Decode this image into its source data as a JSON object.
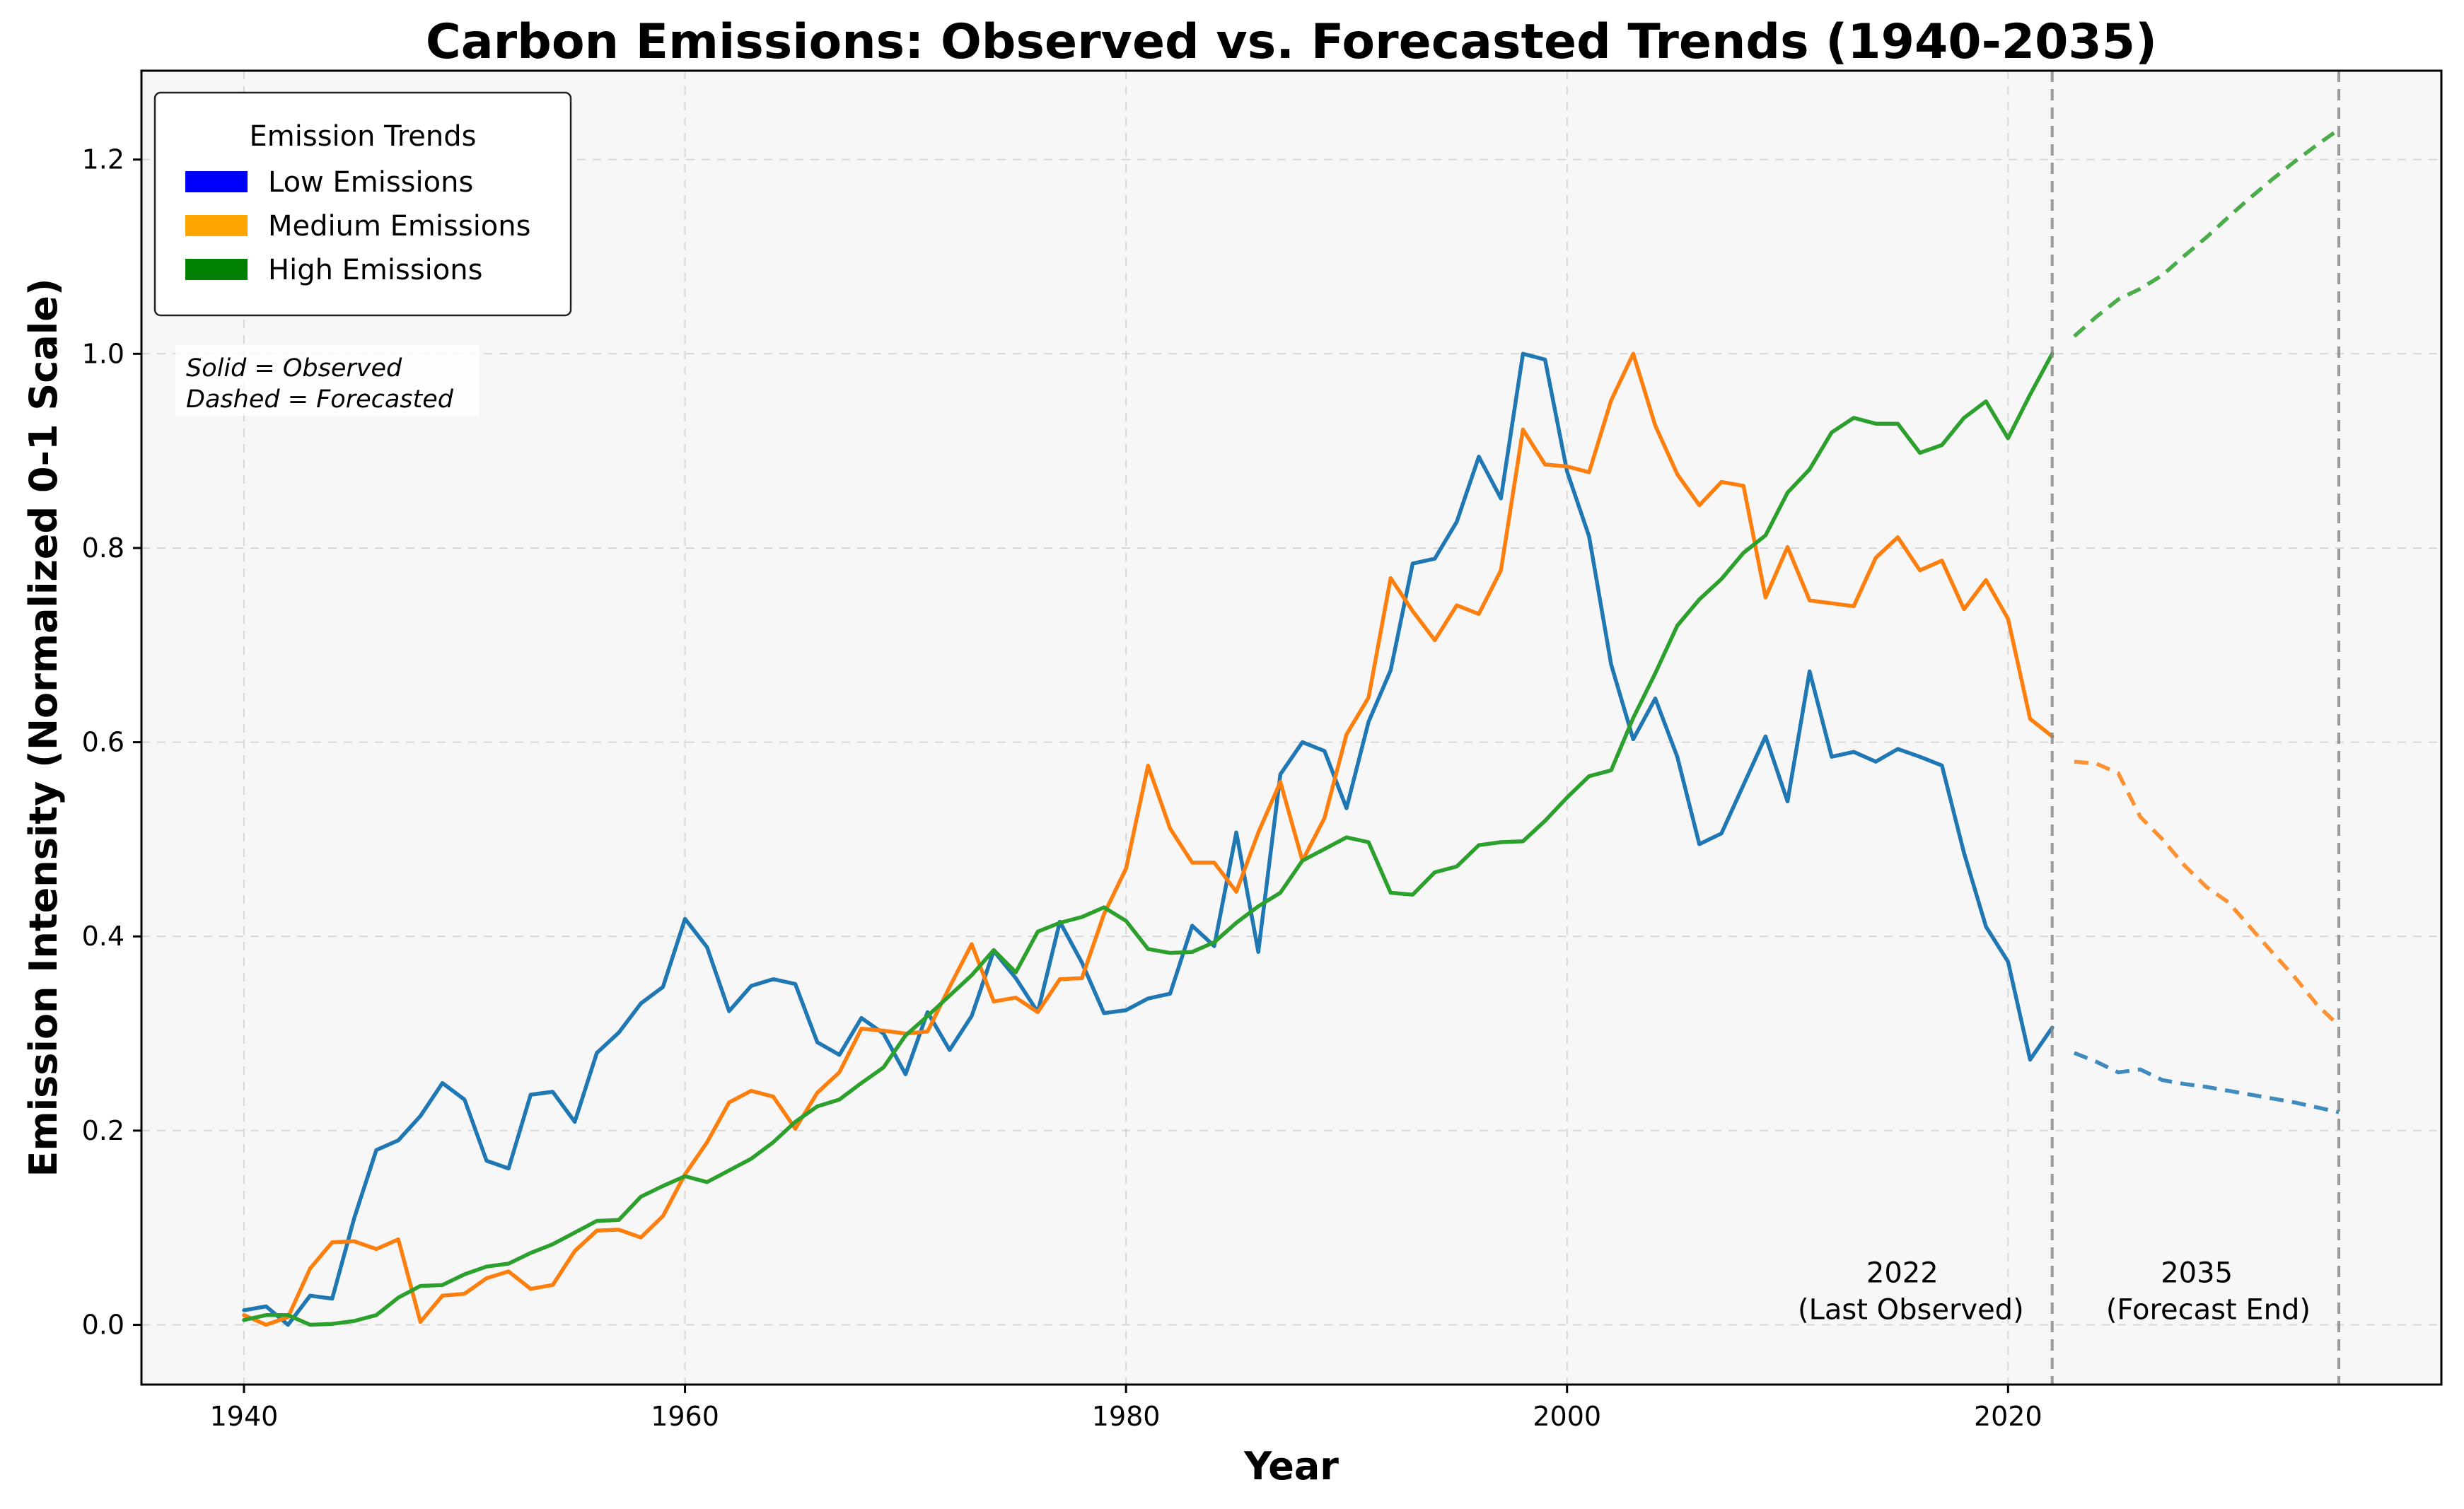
{
  "chart_data": {
    "type": "line",
    "title": "Carbon Emissions: Observed vs. Forecasted Trends (1940-2035)",
    "xlabel": "Year",
    "ylabel": "Emission Intensity (Normalized 0-1 Scale)",
    "xlim": [
      1935.35,
      2039.65
    ],
    "ylim": [
      -0.0615,
      1.2915
    ],
    "x_ticks": [
      1940,
      1960,
      1980,
      2000,
      2020
    ],
    "y_ticks": [
      0.0,
      0.2,
      0.4,
      0.6,
      0.8,
      1.0,
      1.2
    ],
    "grid": true,
    "legend": {
      "title": "Emission Trends",
      "placement": "top-left",
      "entries": [
        {
          "label": "Low Emissions",
          "color": "#0000ff"
        },
        {
          "label": "Medium Emissions",
          "color": "#ffa500"
        },
        {
          "label": "High Emissions",
          "color": "#008000"
        }
      ]
    },
    "note_lines": [
      "Solid = Observed",
      "Dashed = Forecasted"
    ],
    "vlines": [
      {
        "x": 2022,
        "label_lines": [
          "2022",
          "(Last Observed)"
        ]
      },
      {
        "x": 2035,
        "label_lines": [
          "2035",
          "(Forecast End)"
        ]
      }
    ],
    "observed_x_start": 1940,
    "forecast_x_start": 2023,
    "series": [
      {
        "color": "#1f77b4",
        "observed": [
          0.015,
          0.019,
          0.0,
          0.03,
          0.027,
          0.11,
          0.18,
          0.19,
          0.215,
          0.249,
          0.232,
          0.169,
          0.161,
          0.237,
          0.24,
          0.209,
          0.28,
          0.301,
          0.331,
          0.348,
          0.418,
          0.389,
          0.323,
          0.349,
          0.356,
          0.351,
          0.291,
          0.278,
          0.316,
          0.3,
          0.258,
          0.322,
          0.283,
          0.318,
          0.385,
          0.357,
          0.322,
          0.415,
          0.373,
          0.321,
          0.324,
          0.336,
          0.341,
          0.411,
          0.39,
          0.507,
          0.384,
          0.567,
          0.6,
          0.591,
          0.532,
          0.621,
          0.674,
          0.784,
          0.789,
          0.827,
          0.894,
          0.851,
          1.0,
          0.994,
          0.879,
          0.812,
          0.68,
          0.603,
          0.645,
          0.585,
          0.495,
          0.506,
          0.556,
          0.606,
          0.539,
          0.673,
          0.585,
          0.59,
          0.58,
          0.593,
          0.585,
          0.576,
          0.486,
          0.41,
          0.374,
          0.273,
          0.306
        ],
        "forecast": [
          0.28,
          0.271,
          0.26,
          0.263,
          0.252,
          0.248,
          0.245,
          0.241,
          0.237,
          0.233,
          0.229,
          0.224,
          0.219
        ]
      },
      {
        "color": "#ff7f0e",
        "observed": [
          0.01,
          0.0,
          0.008,
          0.058,
          0.085,
          0.086,
          0.078,
          0.088,
          0.003,
          0.03,
          0.032,
          0.048,
          0.055,
          0.037,
          0.041,
          0.076,
          0.097,
          0.098,
          0.09,
          0.112,
          0.155,
          0.188,
          0.229,
          0.241,
          0.235,
          0.202,
          0.239,
          0.26,
          0.305,
          0.303,
          0.3,
          0.302,
          0.348,
          0.392,
          0.333,
          0.337,
          0.322,
          0.356,
          0.357,
          0.423,
          0.47,
          0.576,
          0.511,
          0.476,
          0.476,
          0.446,
          0.507,
          0.559,
          0.478,
          0.522,
          0.608,
          0.646,
          0.769,
          0.735,
          0.705,
          0.741,
          0.732,
          0.777,
          0.922,
          0.886,
          0.884,
          0.878,
          0.952,
          1.0,
          0.926,
          0.876,
          0.844,
          0.868,
          0.864,
          0.749,
          0.801,
          0.746,
          0.743,
          0.74,
          0.79,
          0.811,
          0.777,
          0.787,
          0.737,
          0.767,
          0.727,
          0.624,
          0.606
        ],
        "forecast": [
          0.58,
          0.578,
          0.568,
          0.523,
          0.5,
          0.473,
          0.451,
          0.435,
          0.409,
          0.383,
          0.358,
          0.33,
          0.308
        ]
      },
      {
        "color": "#2ca02c",
        "observed": [
          0.005,
          0.01,
          0.01,
          0.0,
          0.001,
          0.004,
          0.01,
          0.028,
          0.04,
          0.041,
          0.052,
          0.06,
          0.063,
          0.074,
          0.083,
          0.095,
          0.107,
          0.108,
          0.132,
          0.143,
          0.153,
          0.147,
          0.159,
          0.171,
          0.188,
          0.209,
          0.225,
          0.232,
          0.249,
          0.265,
          0.298,
          0.318,
          0.339,
          0.36,
          0.386,
          0.363,
          0.405,
          0.414,
          0.42,
          0.43,
          0.416,
          0.387,
          0.383,
          0.384,
          0.394,
          0.414,
          0.431,
          0.445,
          0.478,
          0.49,
          0.502,
          0.497,
          0.445,
          0.443,
          0.466,
          0.472,
          0.494,
          0.497,
          0.498,
          0.519,
          0.543,
          0.565,
          0.571,
          0.625,
          0.671,
          0.72,
          0.747,
          0.768,
          0.795,
          0.813,
          0.857,
          0.881,
          0.919,
          0.934,
          0.928,
          0.928,
          0.898,
          0.906,
          0.934,
          0.951,
          0.913,
          0.958,
          1.0
        ],
        "forecast": [
          1.018,
          1.038,
          1.056,
          1.067,
          1.081,
          1.101,
          1.12,
          1.141,
          1.161,
          1.18,
          1.198,
          1.215,
          1.231
        ]
      }
    ]
  }
}
